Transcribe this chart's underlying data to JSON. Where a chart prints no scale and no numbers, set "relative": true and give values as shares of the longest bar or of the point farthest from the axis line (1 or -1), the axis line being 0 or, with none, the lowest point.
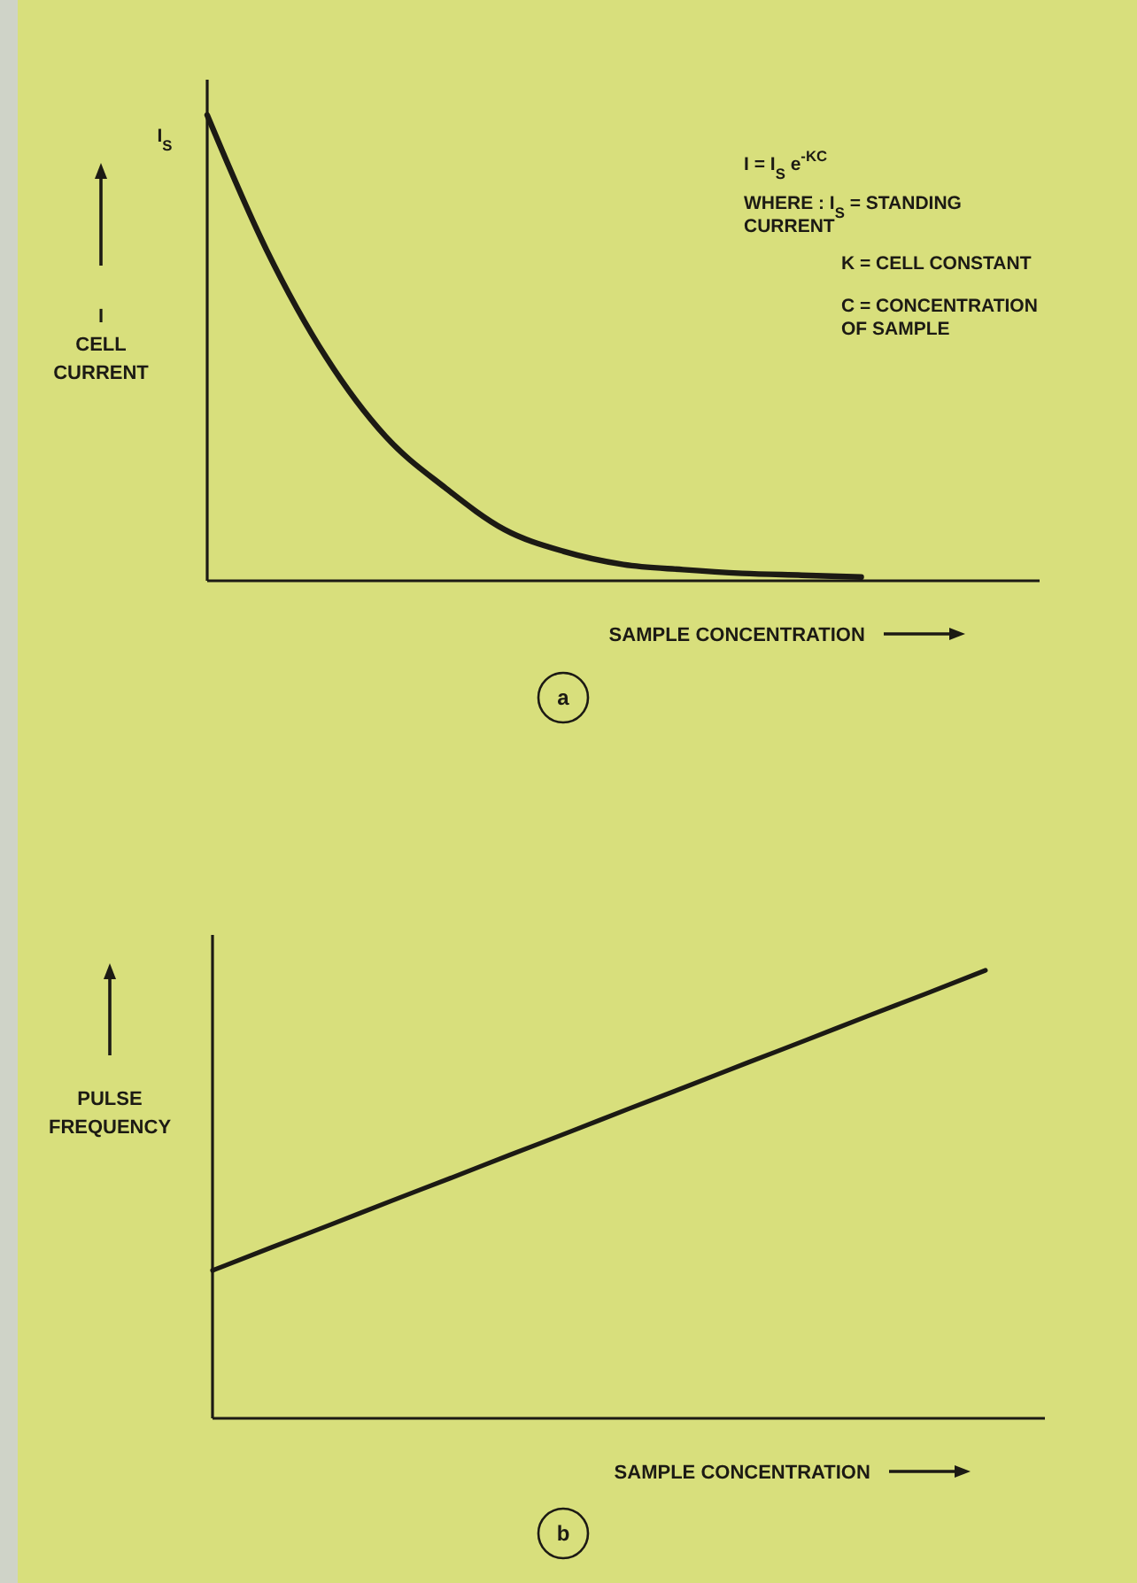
{
  "chart_data": [
    {
      "type": "line",
      "title": "a",
      "xlabel": "SAMPLE CONCENTRATION",
      "ylabel": "I\nCELL\nCURRENT",
      "relative": true,
      "grid": false,
      "marker": "none",
      "line_style": "solid",
      "categories": [
        null,
        null,
        null,
        null,
        null,
        null,
        null,
        null,
        null,
        null,
        null,
        null,
        null,
        null,
        null
      ],
      "series": [
        {
          "color": "#1c1a14",
          "values": [
            1,
            0.71,
            0.48,
            0.31,
            0.2,
            0.11,
            0.063,
            0.035,
            0.024,
            0.016,
            0.012,
            0.008,
            null,
            null,
            null
          ]
        }
      ],
      "annotations": [
        "I$_{S}$",
        "I = I$_{S}$ e$^{-KC}$",
        "WHERE : I$_{S}$ = STANDING\nCURRENT",
        "K = CELL CONSTANT",
        "C = CONCENTRATION\nOF SAMPLE"
      ]
    },
    {
      "type": "line",
      "title": "b",
      "xlabel": "SAMPLE CONCENTRATION",
      "ylabel": "PULSE\nFREQUENCY",
      "relative": true,
      "grid": false,
      "marker": "none",
      "line_style": "solid",
      "categories": [
        null,
        null,
        null,
        null,
        null,
        null,
        null,
        null,
        null,
        null,
        null,
        null,
        null,
        null,
        null
      ],
      "series": [
        {
          "color": "#1c1a14",
          "values": [
            0.33,
            0.382,
            0.433,
            0.485,
            0.536,
            0.588,
            0.639,
            0.691,
            0.742,
            0.794,
            0.845,
            0.897,
            0.948,
            1,
            null
          ]
        }
      ]
    }
  ]
}
